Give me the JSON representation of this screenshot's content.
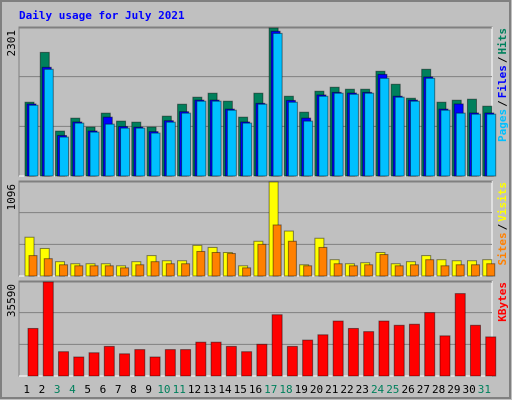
{
  "chart_data": [
    {
      "type": "bar",
      "title": "Daily usage for July 2021",
      "ylim": [
        0,
        2301
      ],
      "yticks": [
        2301
      ],
      "separator": "/",
      "series": [
        {
          "name": "Pages",
          "color": "#00c0ff",
          "values": [
            1100,
            1659,
            605,
            822,
            682,
            806,
            744,
            744,
            667,
            837,
            977,
            1163,
            1163,
            1023,
            822,
            1116,
            2217,
            1147,
            853,
            1240,
            1287,
            1271,
            1287,
            1519,
            1225,
            1163,
            1519,
            1023,
            977,
            961,
            961
          ]
        },
        {
          "name": "Files",
          "color": "#0000ff",
          "values": [
            1120,
            1690,
            630,
            840,
            700,
            915,
            770,
            760,
            690,
            860,
            1000,
            1180,
            1180,
            1040,
            840,
            1130,
            2250,
            1175,
            900,
            1260,
            1300,
            1290,
            1300,
            1580,
            1240,
            1180,
            1540,
            1040,
            1120,
            980,
            980
          ]
        },
        {
          "name": "Hits",
          "color": "#00805c",
          "values": [
            1147,
            1922,
            698,
            899,
            760,
            977,
            853,
            837,
            760,
            930,
            1116,
            1225,
            1287,
            1163,
            915,
            1287,
            2301,
            1240,
            992,
            1318,
            1380,
            1349,
            1349,
            1628,
            1426,
            1209,
            1659,
            1147,
            1178,
            1194,
            1085
          ]
        }
      ]
    },
    {
      "type": "bar",
      "ylim": [
        0,
        1096
      ],
      "yticks": [
        1096
      ],
      "separator": "/",
      "series": [
        {
          "name": "Sites",
          "color": "#ff8000",
          "values": [
            238,
            202,
            131,
            119,
            119,
            119,
            95,
            131,
            167,
            143,
            143,
            286,
            274,
            262,
            95,
            369,
            595,
            405,
            119,
            333,
            143,
            119,
            131,
            250,
            119,
            131,
            190,
            119,
            131,
            131,
            143
          ]
        },
        {
          "name": "Visits",
          "color": "#ffff00",
          "values": [
            452,
            321,
            167,
            143,
            143,
            143,
            119,
            167,
            238,
            178,
            178,
            357,
            333,
            274,
            119,
            405,
            1096,
            524,
            131,
            440,
            190,
            143,
            155,
            274,
            143,
            167,
            238,
            190,
            178,
            178,
            190
          ]
        }
      ]
    },
    {
      "type": "bar",
      "ylim": [
        0,
        35590
      ],
      "yticks": [
        35590
      ],
      "categories": [
        "1",
        "2",
        "3",
        "4",
        "5",
        "6",
        "7",
        "8",
        "9",
        "10",
        "11",
        "12",
        "13",
        "14",
        "15",
        "16",
        "17",
        "18",
        "19",
        "20",
        "21",
        "22",
        "23",
        "24",
        "25",
        "26",
        "27",
        "28",
        "29",
        "30",
        "31"
      ],
      "category_colors": [
        "#000000",
        "#000000",
        "#00805c",
        "#00805c",
        "#000000",
        "#000000",
        "#000000",
        "#000000",
        "#000000",
        "#00805c",
        "#00805c",
        "#000000",
        "#000000",
        "#000000",
        "#000000",
        "#000000",
        "#00805c",
        "#00805c",
        "#000000",
        "#000000",
        "#000000",
        "#000000",
        "#000000",
        "#00805c",
        "#00805c",
        "#000000",
        "#000000",
        "#000000",
        "#000000",
        "#000000",
        "#00805c"
      ],
      "series": [
        {
          "name": "KBytes",
          "color": "#ff0000",
          "values": [
            18000,
            35590,
            9200,
            7200,
            8800,
            11200,
            8400,
            10000,
            7200,
            10000,
            10000,
            12800,
            12800,
            11200,
            9200,
            12000,
            23200,
            11200,
            13600,
            15600,
            20800,
            18000,
            16800,
            20800,
            19200,
            19600,
            24000,
            15200,
            31200,
            19200,
            14800
          ]
        }
      ]
    }
  ]
}
